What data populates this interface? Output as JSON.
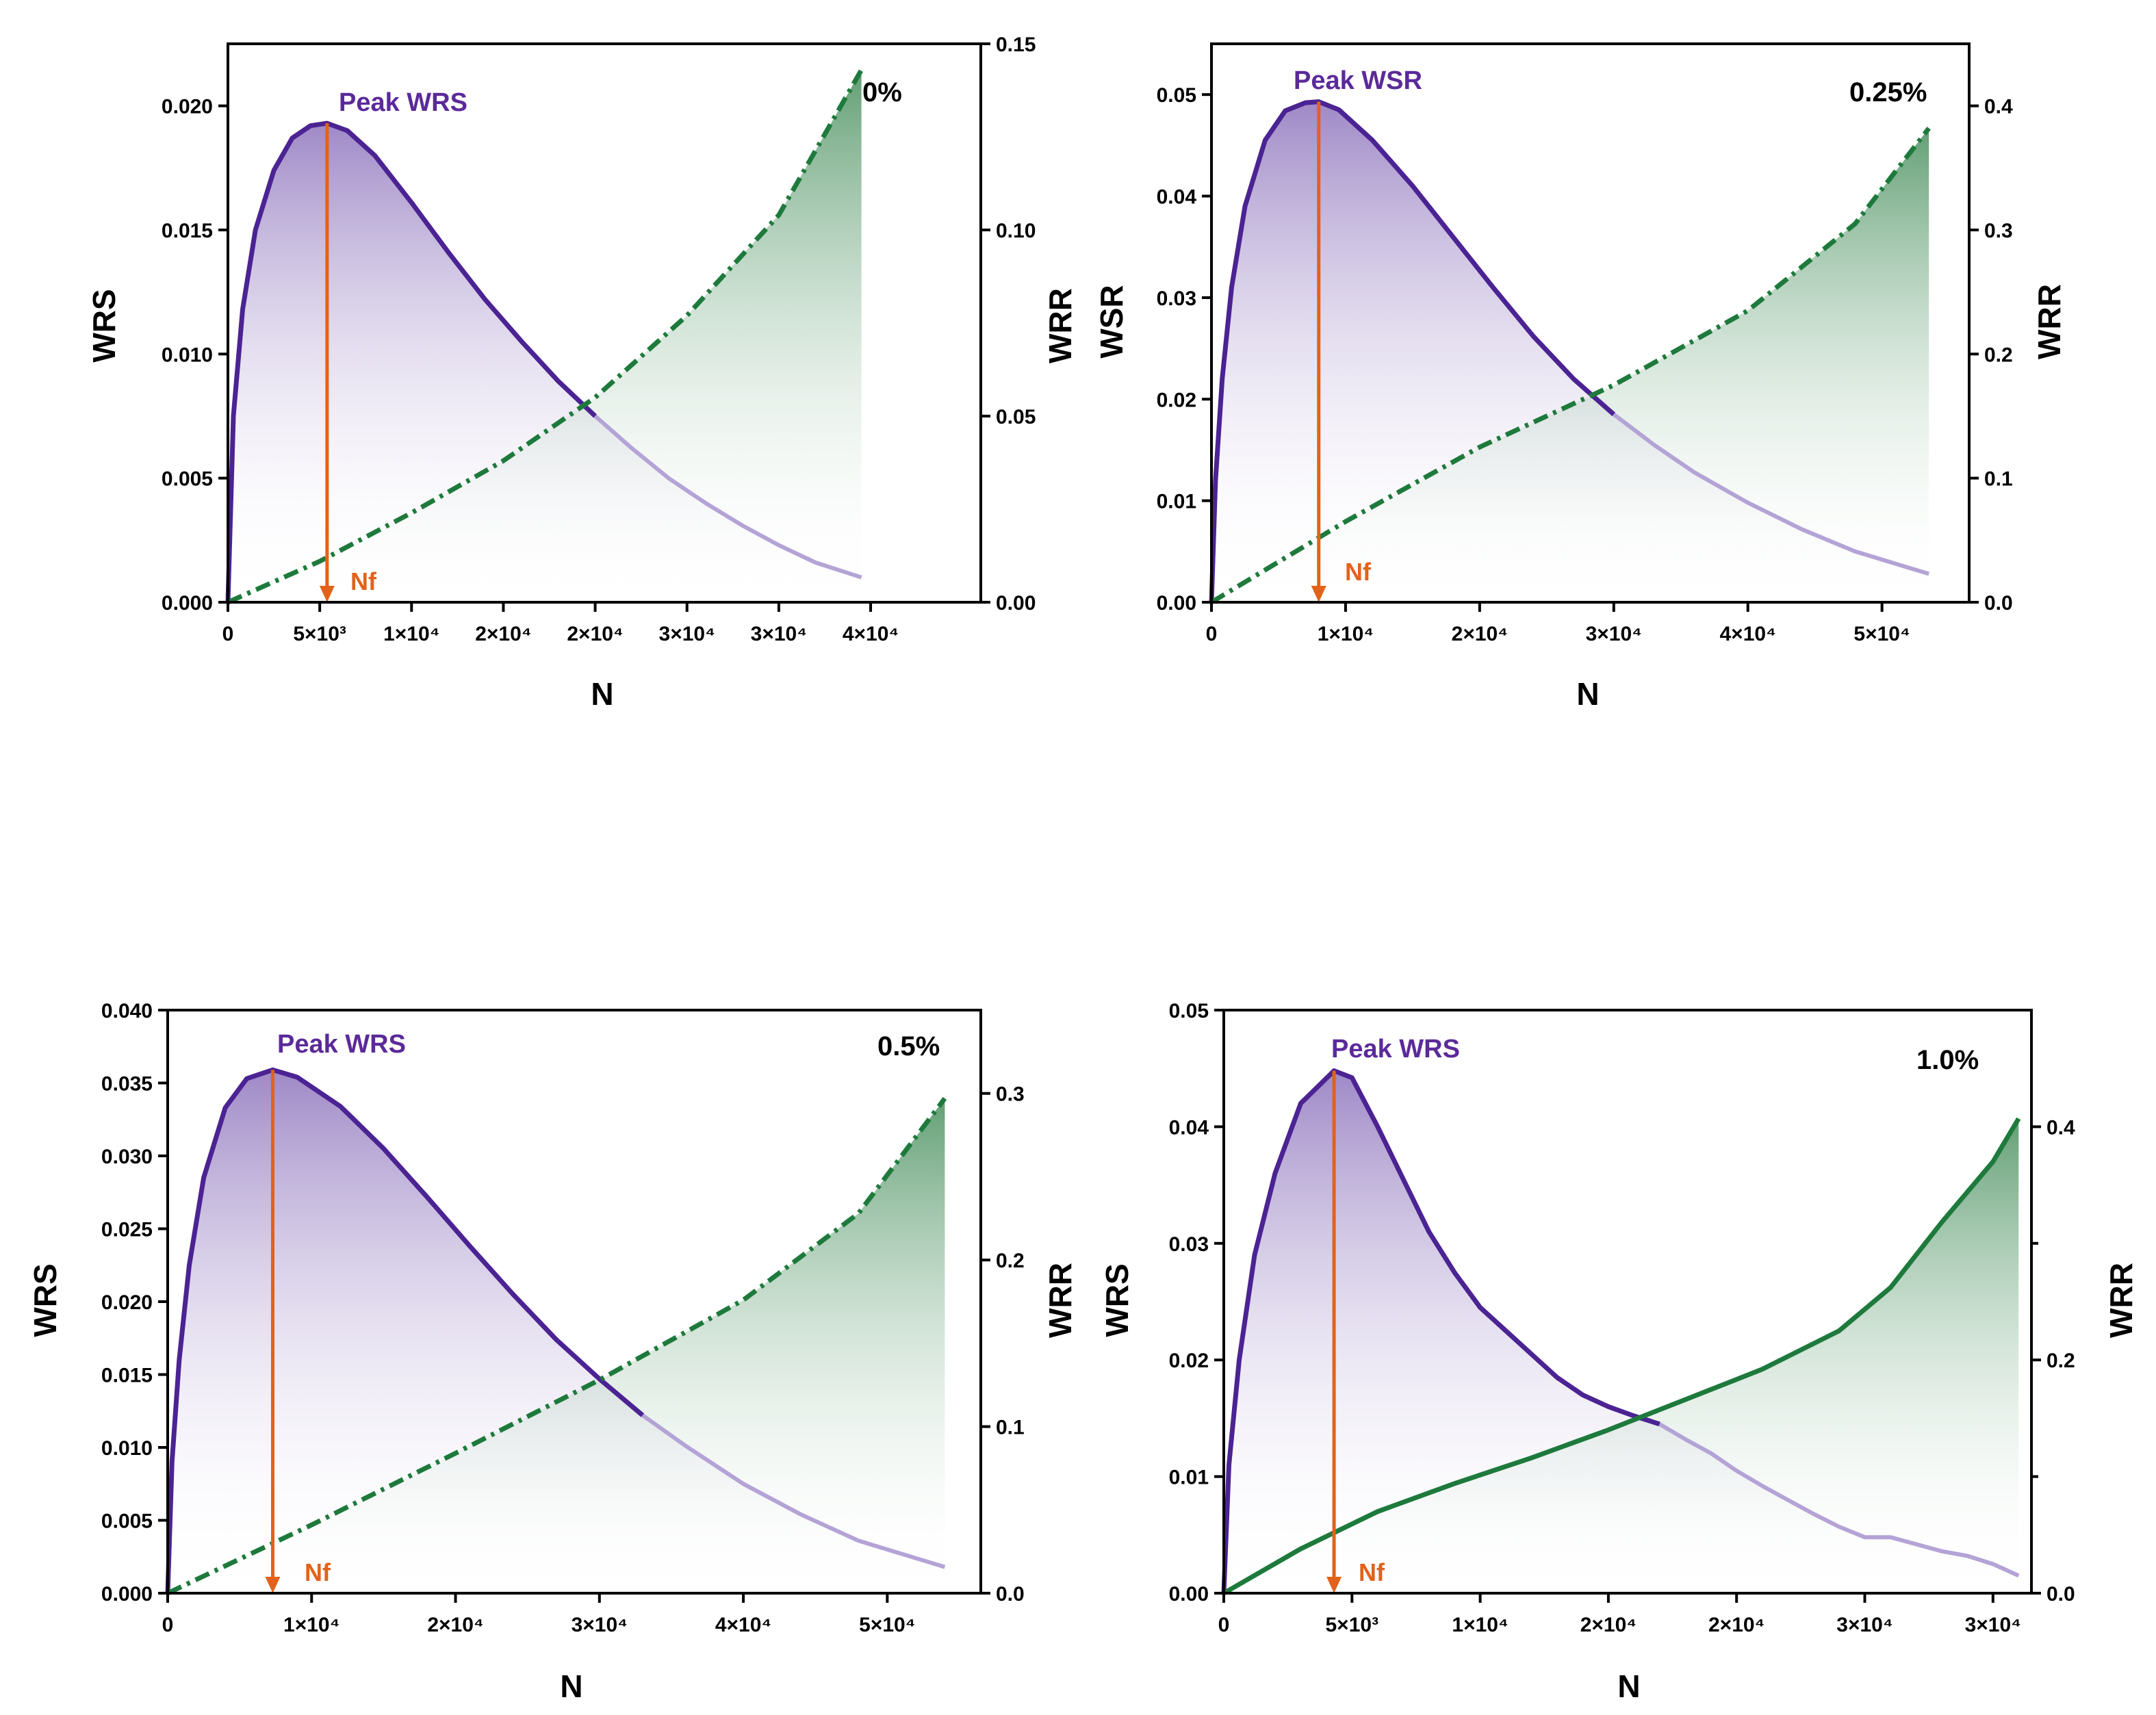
{
  "colors": {
    "wrs_line": "#4b2393",
    "wrs_line_light": "#b4a3d6",
    "wrs_fill_top": "#8e74bd",
    "wrr_line": "#1e7a3c",
    "wrr_fill_top": "#5a9a6d",
    "nf_arrow": "#e2621a",
    "peak_text": "#5b2a9a",
    "nf_text": "#e2621a"
  },
  "chart_data": [
    {
      "type": "line",
      "panel": "top-left",
      "percent_label": "0%",
      "peak_label": "Peak WRS",
      "nf_label": "Nf",
      "xlabel": "N",
      "ylabel_left": "WRS",
      "ylabel_right": "WRR",
      "xlim": [
        0,
        41000
      ],
      "ylim_left": [
        0,
        0.0225
      ],
      "ylim_right": [
        0,
        0.15
      ],
      "x_ticks": [
        0,
        5000,
        10000,
        15000,
        20000,
        25000,
        30000,
        35000
      ],
      "x_tick_labels": [
        "0",
        "5×10³",
        "1×10⁴",
        "2×10⁴",
        "2×10⁴",
        "3×10⁴",
        "3×10⁴",
        "4×10⁴"
      ],
      "y_left_ticks": [
        0,
        0.005,
        0.01,
        0.015,
        0.02
      ],
      "y_left_tick_labels": [
        "0.000",
        "0.005",
        "0.010",
        "0.015",
        "0.020"
      ],
      "y_right_ticks": [
        0,
        0.05,
        0.1,
        0.15
      ],
      "y_right_tick_labels": [
        "0.00",
        "0.05",
        "0.10",
        "0.15"
      ],
      "wrr_style": "dashdot",
      "peak": {
        "x": 5400,
        "y": 0.0193
      },
      "series": [
        {
          "name": "WRS",
          "axis": "left",
          "x": [
            0,
            300,
            800,
            1500,
            2500,
            3500,
            4500,
            5400,
            6500,
            8000,
            10000,
            12000,
            14000,
            16000,
            18000,
            20000,
            22000,
            24000,
            26000,
            28000,
            30000,
            32000,
            34500
          ],
          "y": [
            0,
            0.0075,
            0.0118,
            0.015,
            0.0174,
            0.0187,
            0.0192,
            0.0193,
            0.019,
            0.018,
            0.0161,
            0.0141,
            0.0122,
            0.0105,
            0.0089,
            0.0075,
            0.0062,
            0.005,
            0.004,
            0.0031,
            0.0023,
            0.0016,
            0.001
          ]
        },
        {
          "name": "WRR",
          "axis": "right",
          "x": [
            0,
            5000,
            10000,
            15000,
            20000,
            25000,
            30000,
            34500
          ],
          "y": [
            0,
            0.011,
            0.024,
            0.038,
            0.055,
            0.077,
            0.104,
            0.143
          ]
        }
      ]
    },
    {
      "type": "line",
      "panel": "top-right",
      "percent_label": "0.25%",
      "peak_label": "Peak WSR",
      "nf_label": "Nf",
      "xlabel": "N",
      "ylabel_left": "WSR",
      "ylabel_right": "WRR",
      "xlim": [
        0,
        56500
      ],
      "ylim_left": [
        0,
        0.055
      ],
      "ylim_right": [
        0,
        0.45
      ],
      "x_ticks": [
        0,
        10000,
        20000,
        30000,
        40000,
        50000
      ],
      "x_tick_labels": [
        "0",
        "1×10⁴",
        "2×10⁴",
        "3×10⁴",
        "4×10⁴",
        "5×10⁴"
      ],
      "y_left_ticks": [
        0,
        0.01,
        0.02,
        0.03,
        0.04,
        0.05
      ],
      "y_left_tick_labels": [
        "0.00",
        "0.01",
        "0.02",
        "0.03",
        "0.04",
        "0.05"
      ],
      "y_right_ticks": [
        0,
        0.1,
        0.2,
        0.3,
        0.4
      ],
      "y_right_tick_labels": [
        "0.0",
        "0.1",
        "0.2",
        "0.3",
        "0.4"
      ],
      "wrr_style": "dashdot",
      "peak": {
        "x": 8000,
        "y": 0.0493
      },
      "series": [
        {
          "name": "WSR",
          "axis": "left",
          "x": [
            0,
            300,
            800,
            1500,
            2500,
            4000,
            5500,
            7000,
            8000,
            9500,
            12000,
            15000,
            18000,
            21000,
            24000,
            27000,
            30000,
            33000,
            36000,
            40000,
            44000,
            48000,
            53500
          ],
          "y": [
            0,
            0.012,
            0.022,
            0.031,
            0.039,
            0.0455,
            0.0484,
            0.0492,
            0.0493,
            0.0485,
            0.0455,
            0.041,
            0.036,
            0.031,
            0.0262,
            0.022,
            0.0185,
            0.0155,
            0.0128,
            0.0098,
            0.0072,
            0.005,
            0.0028
          ]
        },
        {
          "name": "WRR",
          "axis": "right",
          "x": [
            0,
            10000,
            20000,
            30000,
            40000,
            48000,
            53500
          ],
          "y": [
            0,
            0.065,
            0.125,
            0.175,
            0.235,
            0.305,
            0.382
          ]
        }
      ]
    },
    {
      "type": "line",
      "panel": "bottom-left",
      "percent_label": "0.5%",
      "peak_label": "Peak WRS",
      "nf_label": "Nf",
      "xlabel": "N",
      "ylabel_left": "WRS",
      "ylabel_right": "WRR",
      "xlim": [
        0,
        56500
      ],
      "ylim_left": [
        0,
        0.04
      ],
      "ylim_right": [
        0,
        0.35
      ],
      "x_ticks": [
        0,
        10000,
        20000,
        30000,
        40000,
        50000
      ],
      "x_tick_labels": [
        "0",
        "1×10⁴",
        "2×10⁴",
        "3×10⁴",
        "4×10⁴",
        "5×10⁴"
      ],
      "y_left_ticks": [
        0,
        0.005,
        0.01,
        0.015,
        0.02,
        0.025,
        0.03,
        0.035,
        0.04
      ],
      "y_left_tick_labels": [
        "0.000",
        "0.005",
        "0.010",
        "0.015",
        "0.020",
        "0.025",
        "0.030",
        "0.035",
        "0.040"
      ],
      "y_right_ticks": [
        0,
        0.1,
        0.2,
        0.3
      ],
      "y_right_tick_labels": [
        "0.0",
        "0.1",
        "0.2",
        "0.3"
      ],
      "wrr_style": "dashdot",
      "peak": {
        "x": 7300,
        "y": 0.0359
      },
      "series": [
        {
          "name": "WRS",
          "axis": "left",
          "x": [
            0,
            300,
            800,
            1500,
            2500,
            4000,
            5500,
            7300,
            9000,
            12000,
            15000,
            18000,
            21000,
            24000,
            27000,
            30000,
            33000,
            36000,
            40000,
            44000,
            48000,
            54000
          ],
          "y": [
            0,
            0.009,
            0.016,
            0.0225,
            0.0285,
            0.0333,
            0.0353,
            0.0359,
            0.0354,
            0.0334,
            0.0305,
            0.0272,
            0.0238,
            0.0205,
            0.0174,
            0.0147,
            0.0122,
            0.0101,
            0.0075,
            0.0054,
            0.0036,
            0.0018
          ]
        },
        {
          "name": "WRR",
          "axis": "right",
          "x": [
            0,
            10000,
            20000,
            30000,
            40000,
            48000,
            54000
          ],
          "y": [
            0,
            0.041,
            0.084,
            0.128,
            0.176,
            0.228,
            0.297
          ]
        }
      ]
    },
    {
      "type": "line",
      "panel": "bottom-right",
      "percent_label": "1.0%",
      "peak_label": "Peak WRS",
      "nf_label": "Nf",
      "xlabel": "N",
      "ylabel_left": "WRS",
      "ylabel_right": "WRR",
      "xlim": [
        0,
        31500
      ],
      "ylim_left": [
        0,
        0.05
      ],
      "ylim_right": [
        0,
        0.5
      ],
      "x_ticks": [
        0,
        5000,
        10000,
        15000,
        20000,
        25000,
        30000
      ],
      "x_tick_labels": [
        "0",
        "5×10³",
        "1×10⁴",
        "2×10⁴",
        "2×10⁴",
        "3×10⁴",
        "3×10⁴"
      ],
      "y_left_ticks": [
        0,
        0.01,
        0.02,
        0.03,
        0.04,
        0.05
      ],
      "y_left_tick_labels": [
        "0.00",
        "0.01",
        "0.02",
        "0.03",
        "0.04",
        "0.05"
      ],
      "y_right_ticks": [
        0,
        0.2,
        0.4
      ],
      "y_right_tick_labels": [
        "0.0",
        "0.2",
        "0.4"
      ],
      "y_right_minor_ticks": [
        0.1,
        0.3
      ],
      "wrr_style": "solid",
      "peak": {
        "x": 4300,
        "y": 0.0448
      },
      "series": [
        {
          "name": "WRS",
          "axis": "left",
          "x": [
            0,
            200,
            600,
            1200,
            2000,
            3000,
            4300,
            5000,
            6000,
            7000,
            8000,
            9000,
            10000,
            11000,
            12000,
            13000,
            14000,
            15000,
            16000,
            17000,
            18000,
            19000,
            20000,
            21000,
            22000,
            23000,
            24000,
            25000,
            26000,
            27000,
            28000,
            29000,
            30000,
            31000
          ],
          "y": [
            0,
            0.011,
            0.02,
            0.029,
            0.036,
            0.042,
            0.0448,
            0.0442,
            0.04,
            0.0355,
            0.031,
            0.0275,
            0.0245,
            0.0225,
            0.0205,
            0.0185,
            0.017,
            0.016,
            0.0152,
            0.0145,
            0.0132,
            0.012,
            0.0105,
            0.0092,
            0.008,
            0.0068,
            0.0057,
            0.0048,
            0.0048,
            0.0042,
            0.0036,
            0.0032,
            0.0025,
            0.0015
          ]
        },
        {
          "name": "WRR",
          "axis": "right",
          "x": [
            0,
            3000,
            6000,
            9000,
            12000,
            15000,
            18000,
            21000,
            24000,
            26000,
            28000,
            30000,
            31000
          ],
          "y": [
            0,
            0.038,
            0.07,
            0.094,
            0.116,
            0.14,
            0.166,
            0.192,
            0.225,
            0.262,
            0.318,
            0.37,
            0.407
          ]
        }
      ]
    }
  ]
}
